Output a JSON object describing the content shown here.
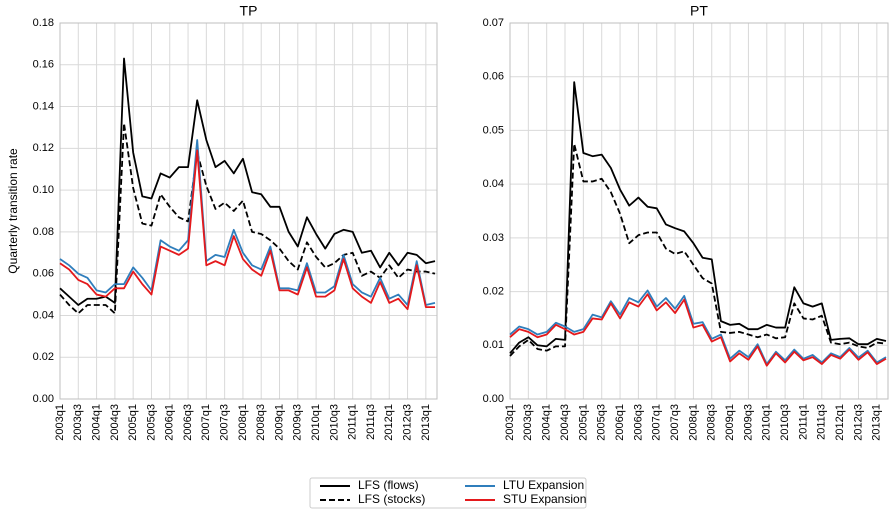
{
  "chart_data": [
    {
      "type": "line",
      "title": "TP",
      "ylabel": "Quarterly transition rate",
      "legend": "bottom",
      "grid": true,
      "categories": [
        "2003q1",
        null,
        "2003q3",
        null,
        "2004q1",
        null,
        "2004q3",
        null,
        "2005q1",
        null,
        "2005q3",
        null,
        "2006q1",
        null,
        "2006q3",
        null,
        "2007q1",
        null,
        "2007q3",
        null,
        "2008q1",
        null,
        "2008q3",
        null,
        "2009q1",
        null,
        "2009q3",
        null,
        "2010q1",
        null,
        "2010q3",
        null,
        "2011q1",
        null,
        "2011q3",
        null,
        "2012q1",
        null,
        "2012q3",
        null,
        "2013q1",
        null
      ],
      "ylim": [
        0,
        0.18
      ],
      "yticks": [
        {
          "value": 0,
          "label": "0.00"
        },
        {
          "value": 0.02,
          "label": "0.02"
        },
        {
          "value": 0.04,
          "label": "0.04"
        },
        {
          "value": 0.06,
          "label": "0.06"
        },
        {
          "value": 0.08,
          "label": "0.08"
        },
        {
          "value": 0.1,
          "label": "0.10"
        },
        {
          "value": 0.12,
          "label": "0.12"
        },
        {
          "value": 0.14,
          "label": "0.14"
        },
        {
          "value": 0.16,
          "label": "0.16"
        },
        {
          "value": 0.18,
          "label": "0.18"
        }
      ],
      "series": [
        {
          "name": "LFS (flows)",
          "color": "#000000",
          "linestyle": "solid",
          "values": [
            0.053,
            0.049,
            0.045,
            0.048,
            0.048,
            0.049,
            0.046,
            0.163,
            0.118,
            0.097,
            0.096,
            0.108,
            0.106,
            0.111,
            0.111,
            0.143,
            0.124,
            0.111,
            0.114,
            0.108,
            0.115,
            0.099,
            0.098,
            0.092,
            0.092,
            0.08,
            0.073,
            0.087,
            0.079,
            0.072,
            0.079,
            0.081,
            0.08,
            0.07,
            0.071,
            0.063,
            0.07,
            0.064,
            0.07,
            0.069,
            0.065,
            0.066
          ]
        },
        {
          "name": "LFS (stocks)",
          "color": "#000000",
          "linestyle": "dashed",
          "values": [
            0.05,
            0.045,
            0.041,
            0.045,
            0.045,
            0.045,
            0.041,
            0.132,
            0.101,
            0.084,
            0.083,
            0.098,
            0.092,
            0.087,
            0.085,
            0.118,
            0.102,
            0.091,
            0.094,
            0.09,
            0.095,
            0.08,
            0.079,
            0.076,
            0.072,
            0.066,
            0.062,
            0.075,
            0.068,
            0.063,
            0.065,
            0.069,
            0.07,
            0.059,
            0.061,
            0.058,
            0.064,
            0.058,
            0.062,
            0.061,
            0.061,
            0.06
          ]
        },
        {
          "name": "LTU Expansion",
          "color": "#2f7ebc",
          "linestyle": "solid",
          "values": [
            0.067,
            0.064,
            0.06,
            0.058,
            0.052,
            0.051,
            0.055,
            0.055,
            0.063,
            0.058,
            0.052,
            0.076,
            0.073,
            0.071,
            0.076,
            0.124,
            0.066,
            0.069,
            0.068,
            0.081,
            0.07,
            0.064,
            0.062,
            0.073,
            0.053,
            0.053,
            0.052,
            0.065,
            0.051,
            0.051,
            0.054,
            0.069,
            0.055,
            0.051,
            0.049,
            0.058,
            0.048,
            0.05,
            0.045,
            0.066,
            0.045,
            0.046
          ]
        },
        {
          "name": "STU Expansion",
          "color": "#e4191c",
          "linestyle": "solid",
          "values": [
            0.065,
            0.062,
            0.057,
            0.055,
            0.05,
            0.049,
            0.053,
            0.053,
            0.061,
            0.055,
            0.05,
            0.073,
            0.071,
            0.069,
            0.072,
            0.119,
            0.064,
            0.066,
            0.064,
            0.078,
            0.067,
            0.062,
            0.059,
            0.071,
            0.052,
            0.052,
            0.05,
            0.063,
            0.049,
            0.049,
            0.052,
            0.067,
            0.053,
            0.049,
            0.046,
            0.056,
            0.046,
            0.048,
            0.043,
            0.064,
            0.044,
            0.044
          ]
        }
      ]
    },
    {
      "type": "line",
      "title": "PT",
      "grid": true,
      "categories": [
        "2003q1",
        null,
        "2003q3",
        null,
        "2004q1",
        null,
        "2004q3",
        null,
        "2005q1",
        null,
        "2005q3",
        null,
        "2006q1",
        null,
        "2006q3",
        null,
        "2007q1",
        null,
        "2007q3",
        null,
        "2008q1",
        null,
        "2008q3",
        null,
        "2009q1",
        null,
        "2009q3",
        null,
        "2010q1",
        null,
        "2010q3",
        null,
        "2011q1",
        null,
        "2011q3",
        null,
        "2012q1",
        null,
        "2012q3",
        null,
        "2013q1",
        null
      ],
      "ylim": [
        0,
        0.07
      ],
      "yticks": [
        {
          "value": 0,
          "label": "0.00"
        },
        {
          "value": 0.01,
          "label": "0.01"
        },
        {
          "value": 0.02,
          "label": "0.02"
        },
        {
          "value": 0.03,
          "label": "0.03"
        },
        {
          "value": 0.04,
          "label": "0.04"
        },
        {
          "value": 0.05,
          "label": "0.05"
        },
        {
          "value": 0.06,
          "label": "0.06"
        },
        {
          "value": 0.07,
          "label": "0.07"
        }
      ],
      "series": [
        {
          "color": "#000000",
          "linestyle": "solid",
          "values": [
            0.0085,
            0.0105,
            0.0115,
            0.01,
            0.0098,
            0.0112,
            0.011,
            0.059,
            0.0458,
            0.0452,
            0.0455,
            0.043,
            0.039,
            0.036,
            0.0375,
            0.0358,
            0.0355,
            0.0325,
            0.0318,
            0.0312,
            0.029,
            0.0263,
            0.026,
            0.0145,
            0.0138,
            0.014,
            0.013,
            0.013,
            0.0138,
            0.0133,
            0.0133,
            0.0208,
            0.0178,
            0.0172,
            0.0178,
            0.011,
            0.0112,
            0.0113,
            0.0102,
            0.0102,
            0.0112,
            0.0108
          ]
        },
        {
          "color": "#000000",
          "linestyle": "dashed",
          "values": [
            0.008,
            0.0098,
            0.011,
            0.0093,
            0.009,
            0.0098,
            0.0098,
            0.0475,
            0.0405,
            0.0405,
            0.041,
            0.0385,
            0.0345,
            0.029,
            0.0305,
            0.031,
            0.031,
            0.028,
            0.027,
            0.0275,
            0.025,
            0.0225,
            0.0215,
            0.0125,
            0.0123,
            0.0125,
            0.012,
            0.0115,
            0.012,
            0.0113,
            0.0115,
            0.0178,
            0.015,
            0.0148,
            0.0155,
            0.0105,
            0.0102,
            0.0105,
            0.0098,
            0.0095,
            0.0105,
            0.0103
          ]
        },
        {
          "color": "#2f7ebc",
          "linestyle": "solid",
          "values": [
            0.012,
            0.0135,
            0.013,
            0.012,
            0.0125,
            0.0142,
            0.0135,
            0.0125,
            0.013,
            0.0157,
            0.0152,
            0.0182,
            0.0157,
            0.0188,
            0.018,
            0.0202,
            0.0172,
            0.0188,
            0.0168,
            0.0192,
            0.014,
            0.0143,
            0.0112,
            0.012,
            0.0075,
            0.009,
            0.0078,
            0.0102,
            0.0065,
            0.0088,
            0.0072,
            0.0092,
            0.0075,
            0.0082,
            0.0068,
            0.0085,
            0.0078,
            0.0095,
            0.0077,
            0.009,
            0.0068,
            0.0078
          ]
        },
        {
          "color": "#e4191c",
          "linestyle": "solid",
          "values": [
            0.0115,
            0.013,
            0.0125,
            0.0115,
            0.012,
            0.0138,
            0.013,
            0.012,
            0.0125,
            0.015,
            0.0148,
            0.0178,
            0.015,
            0.018,
            0.0172,
            0.0195,
            0.0165,
            0.018,
            0.016,
            0.0185,
            0.0133,
            0.0138,
            0.0107,
            0.0115,
            0.007,
            0.0085,
            0.0073,
            0.0098,
            0.0062,
            0.0085,
            0.0068,
            0.0088,
            0.0072,
            0.0078,
            0.0065,
            0.0082,
            0.0075,
            0.0092,
            0.0073,
            0.0087,
            0.0065,
            0.0075
          ]
        }
      ]
    }
  ]
}
